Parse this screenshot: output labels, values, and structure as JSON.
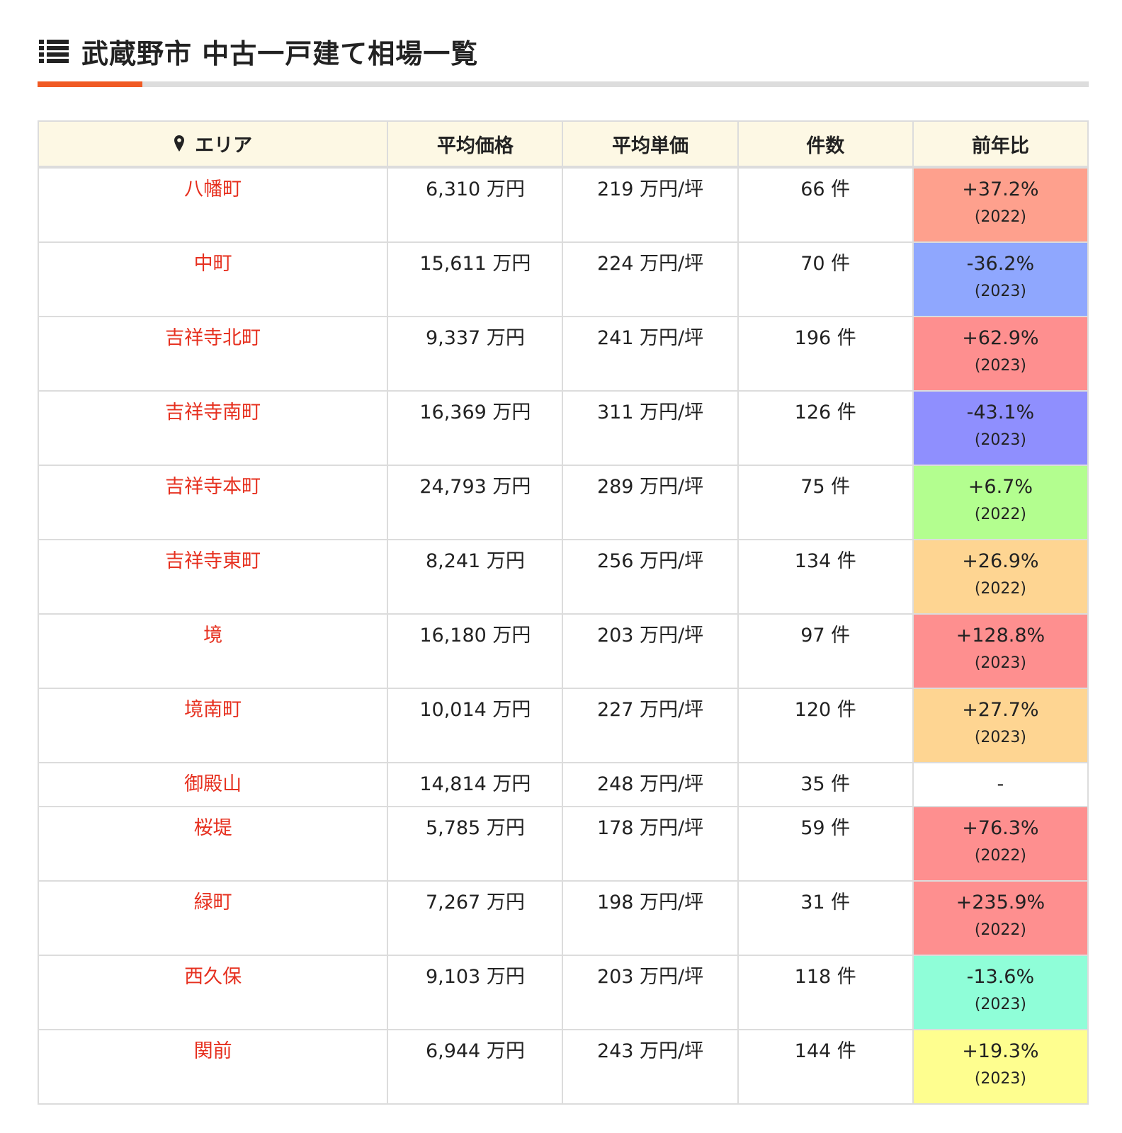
{
  "header": {
    "title": "武蔵野市 中古一戸建て相場一覧",
    "icon": "list-icon"
  },
  "colors": {
    "accent": "#f05a24",
    "area_link": "#e6301f",
    "header_bg": "#fdf8e4"
  },
  "table": {
    "columns": [
      "エリア",
      "平均価格",
      "平均単価",
      "件数",
      "前年比"
    ],
    "rows": [
      {
        "area": "八幡町",
        "price": "6,310 万円",
        "unit": "219 万円/坪",
        "count": "66 件",
        "yoy": "+37.2%",
        "year": "(2022)",
        "color": "#fea08d"
      },
      {
        "area": "中町",
        "price": "15,611 万円",
        "unit": "224 万円/坪",
        "count": "70 件",
        "yoy": "-36.2%",
        "year": "(2023)",
        "color": "#8fa7fe"
      },
      {
        "area": "吉祥寺北町",
        "price": "9,337 万円",
        "unit": "241 万円/坪",
        "count": "196 件",
        "yoy": "+62.9%",
        "year": "(2023)",
        "color": "#fe8f8f"
      },
      {
        "area": "吉祥寺南町",
        "price": "16,369 万円",
        "unit": "311 万円/坪",
        "count": "126 件",
        "yoy": "-43.1%",
        "year": "(2023)",
        "color": "#8f8ffe"
      },
      {
        "area": "吉祥寺本町",
        "price": "24,793 万円",
        "unit": "289 万円/坪",
        "count": "75 件",
        "yoy": "+6.7%",
        "year": "(2022)",
        "color": "#b3fe8f"
      },
      {
        "area": "吉祥寺東町",
        "price": "8,241 万円",
        "unit": "256 万円/坪",
        "count": "134 件",
        "yoy": "+26.9%",
        "year": "(2022)",
        "color": "#fed592"
      },
      {
        "area": "境",
        "price": "16,180 万円",
        "unit": "203 万円/坪",
        "count": "97 件",
        "yoy": "+128.8%",
        "year": "(2023)",
        "color": "#fe8f8f"
      },
      {
        "area": "境南町",
        "price": "10,014 万円",
        "unit": "227 万円/坪",
        "count": "120 件",
        "yoy": "+27.7%",
        "year": "(2023)",
        "color": "#fed592"
      },
      {
        "area": "御殿山",
        "price": "14,814 万円",
        "unit": "248 万円/坪",
        "count": "35 件",
        "yoy": "-",
        "year": "",
        "color": "#ffffff"
      },
      {
        "area": "桜堤",
        "price": "5,785 万円",
        "unit": "178 万円/坪",
        "count": "59 件",
        "yoy": "+76.3%",
        "year": "(2022)",
        "color": "#fe8f8f"
      },
      {
        "area": "緑町",
        "price": "7,267 万円",
        "unit": "198 万円/坪",
        "count": "31 件",
        "yoy": "+235.9%",
        "year": "(2022)",
        "color": "#fe8f8f"
      },
      {
        "area": "西久保",
        "price": "9,103 万円",
        "unit": "203 万円/坪",
        "count": "118 件",
        "yoy": "-13.6%",
        "year": "(2023)",
        "color": "#8ffed8"
      },
      {
        "area": "関前",
        "price": "6,944 万円",
        "unit": "243 万円/坪",
        "count": "144 件",
        "yoy": "+19.3%",
        "year": "(2023)",
        "color": "#fefe8f"
      }
    ]
  }
}
